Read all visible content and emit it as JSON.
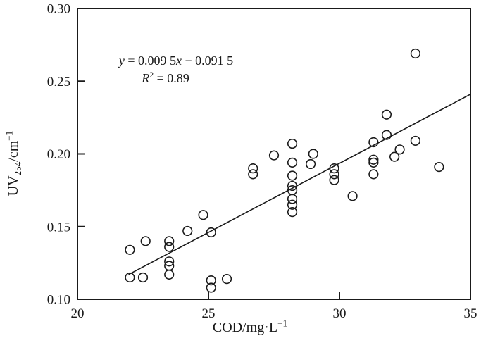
{
  "figure": {
    "background": "#ffffff",
    "ink_color": "#1a1a1a"
  },
  "chart_data": {
    "type": "scatter",
    "title": "",
    "xlabel": "COD/mg·L−1",
    "ylabel": "UV254/cm−1",
    "xlabel_parts": {
      "main": "COD/mg·L",
      "sup": "−1"
    },
    "ylabel_parts": {
      "pre": "UV",
      "sub": "254",
      "mid": "/cm",
      "sup": "−1"
    },
    "xlim": [
      20,
      35
    ],
    "ylim": [
      0.1,
      0.3
    ],
    "x_ticks": [
      20,
      25,
      30,
      35
    ],
    "x_tick_labels": [
      "20",
      "25",
      "30",
      "35"
    ],
    "y_ticks": [
      0.1,
      0.15,
      0.2,
      0.25,
      0.3
    ],
    "y_tick_labels": [
      "0.10",
      "0.15",
      "0.20",
      "0.25",
      "0.30"
    ],
    "grid": false,
    "legend": false,
    "marker": {
      "shape": "open-circle",
      "radius": 6.3,
      "stroke_width": 1.6
    },
    "points": [
      [
        22.0,
        0.134
      ],
      [
        22.0,
        0.115
      ],
      [
        22.5,
        0.115
      ],
      [
        22.6,
        0.14
      ],
      [
        23.5,
        0.14
      ],
      [
        23.5,
        0.136
      ],
      [
        23.5,
        0.126
      ],
      [
        23.5,
        0.123
      ],
      [
        23.5,
        0.117
      ],
      [
        24.2,
        0.147
      ],
      [
        24.8,
        0.158
      ],
      [
        25.1,
        0.146
      ],
      [
        25.1,
        0.113
      ],
      [
        25.1,
        0.108
      ],
      [
        25.7,
        0.114
      ],
      [
        26.7,
        0.19
      ],
      [
        26.7,
        0.186
      ],
      [
        27.5,
        0.199
      ],
      [
        28.2,
        0.207
      ],
      [
        28.2,
        0.194
      ],
      [
        28.2,
        0.185
      ],
      [
        28.2,
        0.178
      ],
      [
        28.2,
        0.175
      ],
      [
        28.2,
        0.169
      ],
      [
        28.2,
        0.165
      ],
      [
        28.2,
        0.16
      ],
      [
        28.9,
        0.193
      ],
      [
        29.0,
        0.2
      ],
      [
        29.8,
        0.19
      ],
      [
        29.8,
        0.186
      ],
      [
        29.8,
        0.182
      ],
      [
        30.5,
        0.171
      ],
      [
        31.3,
        0.208
      ],
      [
        31.3,
        0.196
      ],
      [
        31.3,
        0.194
      ],
      [
        31.3,
        0.186
      ],
      [
        31.8,
        0.227
      ],
      [
        31.8,
        0.213
      ],
      [
        32.1,
        0.198
      ],
      [
        32.3,
        0.203
      ],
      [
        32.9,
        0.269
      ],
      [
        32.9,
        0.209
      ],
      [
        33.8,
        0.191
      ]
    ],
    "trendline": {
      "slope": 0.0095,
      "intercept": -0.0915,
      "x_range": [
        21.95,
        35
      ]
    },
    "annotation": {
      "eq_y": "y",
      "eq_mid": " = 0.009 5",
      "eq_x": "x",
      "eq_tail": " − 0.091 5",
      "r_var": "R",
      "r_sup": "2",
      "r_rest": " = 0.89"
    }
  }
}
